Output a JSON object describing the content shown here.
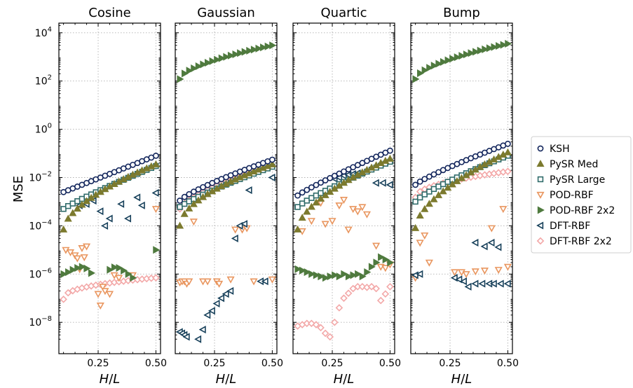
{
  "chart_data": {
    "type": "scatter",
    "ylabel": "MSE",
    "xlabel": "H/L",
    "xlabel_italic_parts": [
      "H",
      "/",
      "L"
    ],
    "yscale": "log",
    "xlim": [
      0.08,
      0.52
    ],
    "ylim_exp": [
      -9.3,
      4.4
    ],
    "xticks": [
      0.25,
      0.5
    ],
    "xtick_labels": [
      "0.25",
      "0.50"
    ],
    "yticks_exp": [
      -8,
      -6,
      -4,
      -2,
      0,
      2,
      4
    ],
    "ytick_labels": [
      {
        "base": "10",
        "exp": "−8"
      },
      {
        "base": "10",
        "exp": "−6"
      },
      {
        "base": "10",
        "exp": "−4"
      },
      {
        "base": "10",
        "exp": "−2"
      },
      {
        "base": "10",
        "exp": "0"
      },
      {
        "base": "10",
        "exp": "2"
      },
      {
        "base": "10",
        "exp": "4"
      }
    ],
    "grid": true,
    "legend_placement": "right",
    "panels": [
      "Cosine",
      "Gaussian",
      "Quartic",
      "Bump"
    ],
    "series": [
      {
        "name": "KSH",
        "marker": "circle",
        "color": "#13265c",
        "filled": false
      },
      {
        "name": "PySR Med",
        "marker": "triangle-up",
        "color": "#7c7a2e",
        "filled": true
      },
      {
        "name": "PySR Large",
        "marker": "square",
        "color": "#2f6b6a",
        "filled": false
      },
      {
        "name": "POD-RBF",
        "marker": "triangle-down",
        "color": "#e9965f",
        "filled": false
      },
      {
        "name": "POD-RBF 2x2",
        "marker": "triangle-right",
        "color": "#4f7a3e",
        "filled": true
      },
      {
        "name": "DFT-RBF",
        "marker": "triangle-left",
        "color": "#17405a",
        "filled": false
      },
      {
        "name": "DFT-RBF 2x2",
        "marker": "diamond",
        "color": "#f3a8a8",
        "filled": false
      }
    ],
    "data": {
      "Cosine": {
        "KSH": {
          "mode": "curve",
          "y_start": 0.0025,
          "y_end": 0.08,
          "shape": 1.0
        },
        "PySR Med": {
          "mode": "curve",
          "y_start": 7e-05,
          "y_end": 0.035,
          "shape": 0.6
        },
        "PySR Large": {
          "mode": "curve",
          "y_start": 0.0005,
          "y_end": 0.03,
          "shape": 0.9
        },
        "POD-RBF": {
          "mode": "points",
          "x": [
            0.11,
            0.13,
            0.15,
            0.16,
            0.17,
            0.18,
            0.19,
            0.2,
            0.25,
            0.26,
            0.27,
            0.28,
            0.3,
            0.32,
            0.34,
            0.4,
            0.5
          ],
          "y": [
            1e-05,
            8e-06,
            6e-06,
            4.5e-06,
            1.6e-06,
            1.2e-05,
            5e-06,
            1.4e-05,
            1.5e-07,
            5e-08,
            3e-07,
            2e-07,
            1.5e-07,
            9e-07,
            7e-07,
            9e-07,
            0.0005
          ]
        },
        "POD-RBF 2x2": {
          "mode": "curve-bump",
          "x": [
            0.1,
            0.12,
            0.14,
            0.16,
            0.18,
            0.2,
            0.22,
            0.3,
            0.32,
            0.34,
            0.36,
            0.38,
            0.4,
            0.5
          ],
          "y": [
            1e-06,
            1.2e-06,
            1.5e-06,
            1.8e-06,
            2e-06,
            1.7e-06,
            1.1e-06,
            1.5e-06,
            1.9e-06,
            1.8e-06,
            1.4e-06,
            1e-06,
            7e-07,
            1e-05
          ]
        },
        "DFT-RBF": {
          "mode": "points",
          "x": [
            0.17,
            0.2,
            0.23,
            0.26,
            0.28,
            0.3,
            0.35,
            0.38,
            0.42,
            0.44,
            0.5
          ],
          "y": [
            0.0007,
            0.0008,
            0.0011,
            0.0004,
            0.0001,
            0.0002,
            0.0008,
            0.0002,
            0.0015,
            0.0007,
            0.0023
          ]
        },
        "DFT-RBF 2x2": {
          "mode": "curve",
          "y_start": 9e-08,
          "y_end": 7e-07,
          "shape": 0.4
        }
      },
      "Gaussian": {
        "KSH": {
          "mode": "curve",
          "y_start": 0.0011,
          "y_end": 0.055,
          "shape": 0.8
        },
        "PySR Med": {
          "mode": "curve",
          "y_start": 0.0001,
          "y_end": 0.035,
          "shape": 0.55
        },
        "PySR Large": {
          "mode": "curve",
          "y_start": 0.0006,
          "y_end": 0.028,
          "shape": 0.85
        },
        "POD-RBF": {
          "mode": "points",
          "x": [
            0.1,
            0.11,
            0.12,
            0.13,
            0.14,
            0.16,
            0.2,
            0.22,
            0.26,
            0.27,
            0.32,
            0.34,
            0.37,
            0.39,
            0.42,
            0.5
          ],
          "y": [
            4.5e-07,
            5e-07,
            5e-07,
            4e-07,
            5e-07,
            0.00015,
            5e-07,
            5e-07,
            5e-07,
            4e-07,
            6e-07,
            7e-05,
            7e-05,
            8e-05,
            5e-07,
            6e-07
          ]
        },
        "POD-RBF 2x2": {
          "mode": "curve",
          "y_start": 120,
          "y_end": 3000.0,
          "shape": 0.6
        },
        "DFT-RBF": {
          "mode": "points",
          "x": [
            0.1,
            0.11,
            0.12,
            0.13,
            0.18,
            0.2,
            0.22,
            0.24,
            0.26,
            0.28,
            0.3,
            0.32,
            0.34,
            0.36,
            0.38,
            0.4,
            0.45,
            0.47,
            0.5
          ],
          "y": [
            4e-09,
            3.5e-09,
            3e-09,
            2.5e-09,
            2e-09,
            5e-09,
            2e-08,
            3e-08,
            6e-08,
            1e-07,
            1.5e-07,
            2e-07,
            3e-05,
            0.0001,
            0.00012,
            0.003,
            5e-07,
            5e-07,
            0.01
          ]
        },
        "DFT-RBF 2x2": {
          "mode": "curve",
          "y_start": 0.0005,
          "y_end": 0.032,
          "shape": 0.7
        }
      },
      "Quartic": {
        "KSH": {
          "mode": "curve",
          "y_start": 0.0018,
          "y_end": 0.13,
          "shape": 0.9
        },
        "PySR Med": {
          "mode": "curve",
          "y_start": 7e-05,
          "y_end": 0.06,
          "shape": 0.6
        },
        "PySR Large": {
          "mode": "curve",
          "y_start": 0.0006,
          "y_end": 0.045,
          "shape": 0.85
        },
        "POD-RBF": {
          "mode": "points",
          "x": [
            0.12,
            0.16,
            0.2,
            0.22,
            0.25,
            0.28,
            0.3,
            0.32,
            0.34,
            0.36,
            0.38,
            0.4,
            0.44,
            0.46,
            0.48,
            0.5
          ],
          "y": [
            6e-05,
            0.00016,
            0.0009,
            0.00012,
            0.00016,
            0.0007,
            0.0012,
            7e-05,
            0.0005,
            0.0004,
            0.0006,
            0.0003,
            1.5e-05,
            2e-06,
            1.8e-06,
            2.5e-06
          ]
        },
        "POD-RBF 2x2": {
          "mode": "curve-bump",
          "x": [
            0.1,
            0.12,
            0.14,
            0.16,
            0.18,
            0.2,
            0.22,
            0.24,
            0.26,
            0.28,
            0.3,
            0.32,
            0.34,
            0.36,
            0.38,
            0.4,
            0.42,
            0.44,
            0.46,
            0.48,
            0.5
          ],
          "y": [
            1.6e-06,
            1.4e-06,
            1.2e-06,
            1e-06,
            9e-07,
            8e-07,
            7e-07,
            8e-07,
            9e-07,
            8e-07,
            1e-06,
            8e-07,
            9e-07,
            1e-06,
            8e-07,
            1.2e-06,
            2e-06,
            3e-06,
            5e-06,
            4e-06,
            3e-06
          ]
        },
        "DFT-RBF": {
          "mode": "points",
          "x": [
            0.26,
            0.28,
            0.3,
            0.32,
            0.34,
            0.36,
            0.44,
            0.47,
            0.5
          ],
          "y": [
            0.009,
            0.01,
            0.012,
            0.013,
            0.014,
            0.015,
            0.006,
            0.006,
            0.005
          ]
        },
        "DFT-RBF 2x2": {
          "mode": "curve-bump",
          "x": [
            0.1,
            0.12,
            0.14,
            0.16,
            0.18,
            0.2,
            0.22,
            0.24,
            0.26,
            0.28,
            0.3,
            0.32,
            0.34,
            0.36,
            0.38,
            0.4,
            0.42,
            0.44,
            0.46,
            0.48,
            0.5
          ],
          "y": [
            7e-09,
            8e-09,
            9e-09,
            9e-09,
            8e-09,
            6e-09,
            3.5e-09,
            2.5e-09,
            1e-08,
            4e-08,
            1e-07,
            1.6e-07,
            2.5e-07,
            3e-07,
            3e-07,
            2.8e-07,
            3e-07,
            2.5e-07,
            8e-08,
            1.5e-07,
            3e-07
          ]
        }
      },
      "Bump": {
        "KSH": {
          "mode": "curve",
          "y_start": 0.005,
          "y_end": 0.25,
          "shape": 0.85
        },
        "PySR Med": {
          "mode": "curve",
          "y_start": 8e-05,
          "y_end": 0.11,
          "shape": 0.6
        },
        "PySR Large": {
          "mode": "curve",
          "y_start": 0.001,
          "y_end": 0.08,
          "shape": 0.8
        },
        "POD-RBF": {
          "mode": "points",
          "x": [
            0.1,
            0.12,
            0.14,
            0.16,
            0.27,
            0.3,
            0.32,
            0.36,
            0.4,
            0.43,
            0.46,
            0.48,
            0.5
          ],
          "y": [
            7e-07,
            2e-05,
            4e-05,
            3e-06,
            1.2e-06,
            1.2e-06,
            1e-06,
            1.3e-06,
            1.4e-06,
            8e-05,
            1.5e-06,
            0.0005,
            2e-06
          ]
        },
        "POD-RBF 2x2": {
          "mode": "curve",
          "y_start": 120,
          "y_end": 3500.0,
          "shape": 0.6
        },
        "DFT-RBF": {
          "mode": "points",
          "x": [
            0.1,
            0.12,
            0.27,
            0.29,
            0.31,
            0.33,
            0.36,
            0.39,
            0.42,
            0.44,
            0.47,
            0.5,
            0.36,
            0.4,
            0.43,
            0.46
          ],
          "y": [
            9e-07,
            1e-06,
            7e-07,
            6e-07,
            5e-07,
            3e-07,
            4e-07,
            4e-07,
            4e-07,
            4e-07,
            4e-07,
            4e-07,
            2e-05,
            1.4e-05,
            2e-05,
            1.3e-05
          ]
        },
        "DFT-RBF 2x2": {
          "mode": "curve",
          "y_start": 0.0015,
          "y_end": 0.018,
          "shape": 0.5
        }
      }
    }
  }
}
